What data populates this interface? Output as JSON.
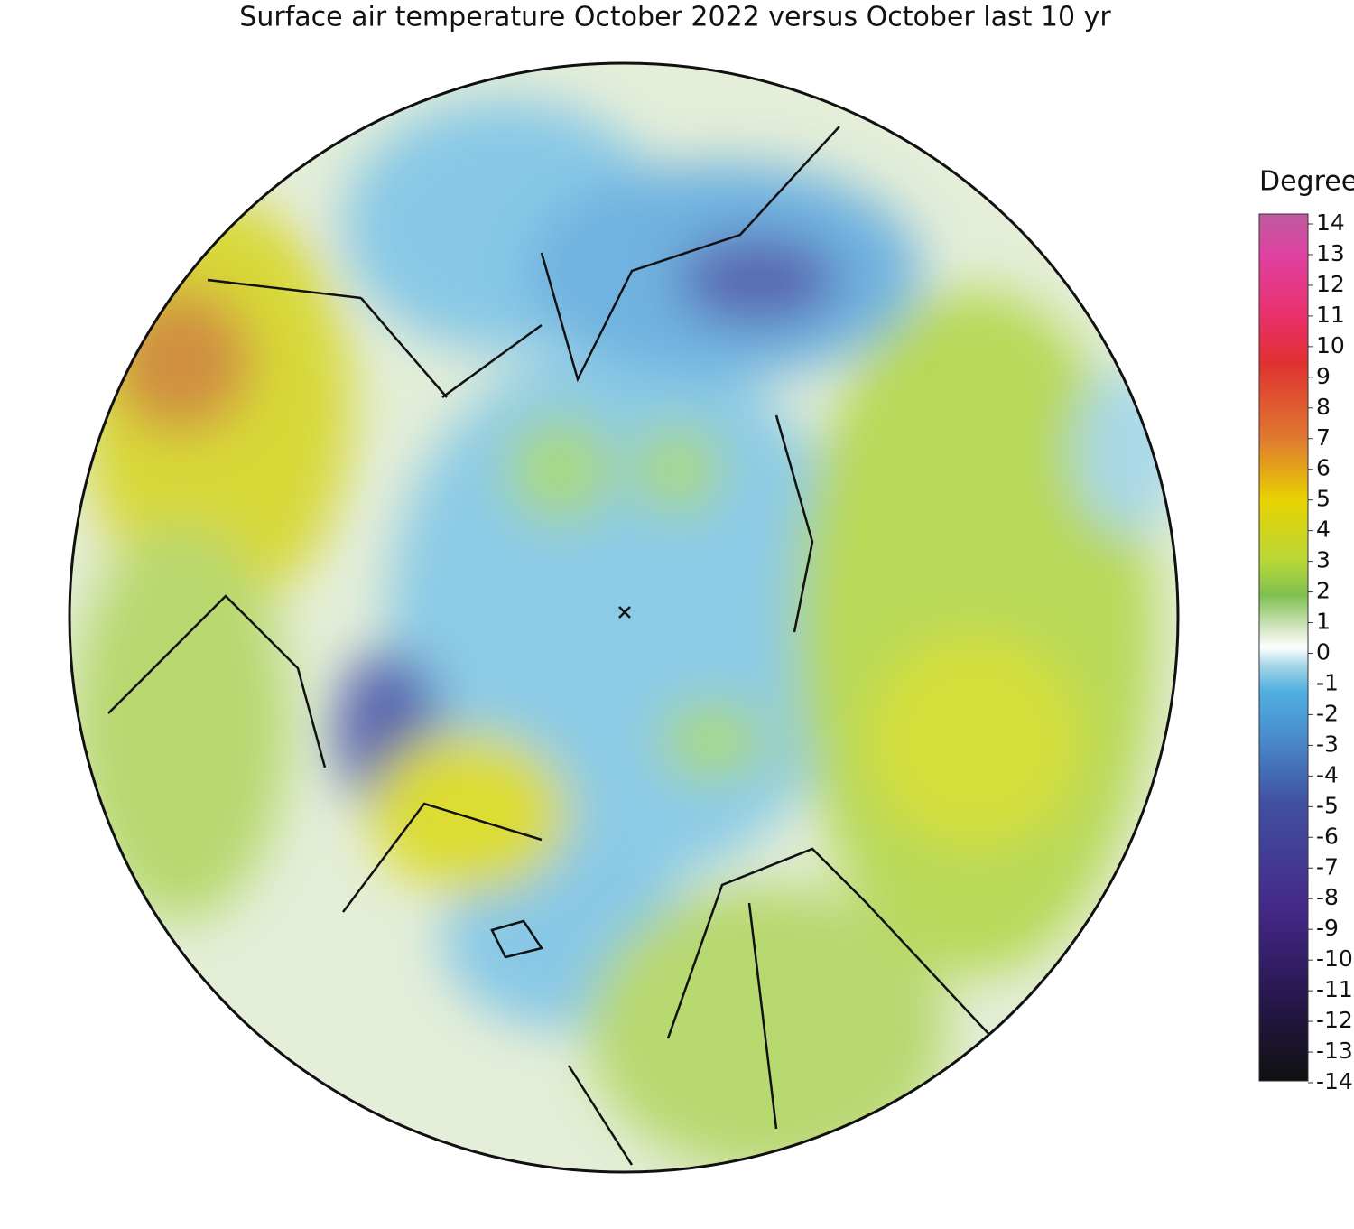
{
  "title": "Surface air temperature October 2022 versus October last 10 yr",
  "colorbar": {
    "label": "Degrees C",
    "ticks": [
      14,
      13,
      12,
      11,
      10,
      9,
      8,
      7,
      6,
      5,
      4,
      3,
      2,
      1,
      0,
      -1,
      -2,
      -3,
      -4,
      -5,
      -6,
      -7,
      -8,
      -9,
      -10,
      -11,
      -12,
      -13,
      -14
    ]
  }
}
